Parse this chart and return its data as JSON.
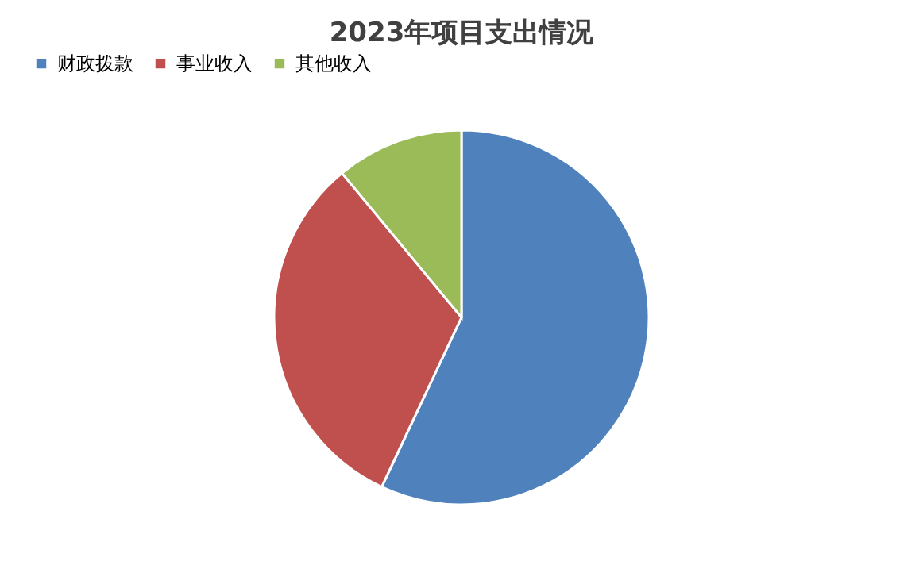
{
  "chart_data": {
    "type": "pie",
    "title": "2023年项目支出情况",
    "categories": [
      "财政拨款",
      "事业收入",
      "其他收入"
    ],
    "values": [
      57,
      32,
      11
    ],
    "colors": [
      "#4f81bd",
      "#c0504d",
      "#9bbb59"
    ],
    "legend": "top"
  }
}
